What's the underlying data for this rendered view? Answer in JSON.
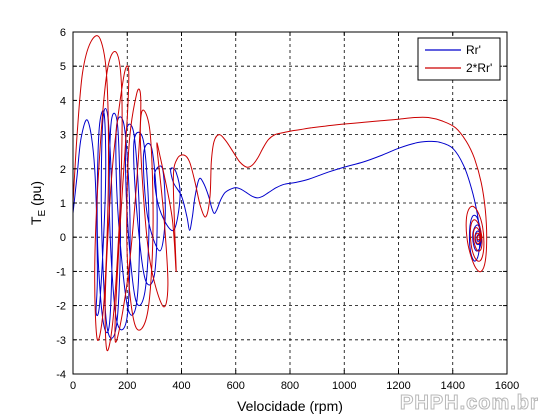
{
  "watermark": "PHPH.com.br",
  "chart_data": {
    "type": "line",
    "xlabel": "Velocidade (rpm)",
    "ylabel_main": "T",
    "ylabel_sub": "E",
    "ylabel_unit": "(pu)",
    "xlim": [
      0,
      1600
    ],
    "ylim": [
      -4,
      6
    ],
    "xticks": [
      0,
      200,
      400,
      600,
      800,
      1000,
      1200,
      1400,
      1600
    ],
    "yticks": [
      -4,
      -3,
      -2,
      -1,
      0,
      1,
      2,
      3,
      4,
      5,
      6
    ],
    "grid": true,
    "legend_position": "top-right",
    "series": [
      {
        "name": "Rr'",
        "color": "#0000cc",
        "x": [
          0,
          15,
          30,
          55,
          80,
          90,
          85,
          100,
          120,
          115,
          95,
          90,
          110,
          135,
          145,
          130,
          110,
          105,
          125,
          160,
          175,
          165,
          140,
          135,
          160,
          200,
          210,
          190,
          160,
          165,
          200,
          235,
          245,
          225,
          195,
          200,
          230,
          265,
          280,
          260,
          225,
          235,
          265,
          300,
          310,
          290,
          260,
          275,
          320,
          340,
          330,
          300,
          320,
          370,
          395,
          380,
          360,
          370,
          400,
          420,
          430,
          440,
          450,
          465,
          480,
          500,
          510,
          520,
          530,
          545,
          560,
          580,
          600,
          620,
          640,
          660,
          680,
          700,
          720,
          750,
          780,
          820,
          870,
          940,
          1000,
          1070,
          1140,
          1200,
          1260,
          1310,
          1350,
          1400,
          1440,
          1470,
          1490,
          1500,
          1495,
          1480,
          1465,
          1462,
          1472,
          1488,
          1500,
          1505,
          1500,
          1487,
          1476,
          1474,
          1482,
          1494,
          1502,
          1504,
          1498,
          1488,
          1482,
          1484,
          1492,
          1500,
          1502,
          1498,
          1492,
          1489,
          1491,
          1497,
          1500,
          1498,
          1495
        ],
        "y": [
          0.7,
          1.8,
          2.9,
          3.4,
          2.0,
          -1.0,
          -2.2,
          -1.8,
          1.5,
          3.6,
          3.0,
          0.0,
          -2.4,
          -2.5,
          0.5,
          3.4,
          3.4,
          0.5,
          -2.6,
          -2.6,
          0.0,
          3.2,
          3.3,
          0.5,
          -2.4,
          -2.3,
          0.5,
          3.2,
          3.2,
          0.8,
          -2.0,
          -1.9,
          0.5,
          3.0,
          3.0,
          0.6,
          -1.8,
          -1.6,
          0.5,
          2.8,
          2.8,
          0.8,
          -1.2,
          -1.1,
          0.8,
          2.6,
          2.4,
          0.6,
          -0.4,
          0.6,
          2.0,
          1.8,
          0.8,
          0.2,
          1.2,
          1.9,
          2.0,
          1.6,
          1.2,
          0.6,
          0.2,
          0.6,
          1.2,
          1.7,
          1.6,
          1.2,
          0.9,
          0.7,
          0.8,
          1.1,
          1.3,
          1.4,
          1.45,
          1.4,
          1.3,
          1.2,
          1.15,
          1.2,
          1.3,
          1.45,
          1.55,
          1.6,
          1.7,
          1.9,
          2.05,
          2.2,
          2.4,
          2.6,
          2.75,
          2.8,
          2.78,
          2.6,
          2.1,
          1.4,
          0.7,
          0.1,
          -0.5,
          -0.7,
          -0.4,
          0.2,
          0.6,
          0.6,
          0.3,
          0.0,
          -0.3,
          -0.4,
          -0.2,
          0.1,
          0.3,
          0.35,
          0.15,
          -0.05,
          -0.2,
          -0.2,
          -0.05,
          0.1,
          0.18,
          0.12,
          0.0,
          -0.1,
          -0.12,
          -0.05,
          0.05,
          0.08,
          0.04,
          0.0,
          0.0
        ]
      },
      {
        "name": "2*Rr'",
        "color": "#cc0000",
        "x": [
          0,
          15,
          35,
          65,
          100,
          125,
          130,
          115,
          90,
          80,
          95,
          125,
          160,
          180,
          175,
          150,
          125,
          120,
          145,
          185,
          205,
          200,
          175,
          155,
          165,
          205,
          240,
          250,
          235,
          205,
          200,
          230,
          275,
          295,
          285,
          255,
          250,
          280,
          330,
          350,
          335,
          310,
          320,
          365,
          380,
          375,
          370,
          385,
          410,
          430,
          450,
          470,
          490,
          505,
          510,
          520,
          540,
          565,
          590,
          615,
          640,
          660,
          680,
          700,
          720,
          745,
          770,
          800,
          840,
          880,
          930,
          990,
          1060,
          1130,
          1200,
          1260,
          1310,
          1360,
          1410,
          1450,
          1480,
          1505,
          1520,
          1525,
          1520,
          1505,
          1485,
          1465,
          1452,
          1450,
          1458,
          1475,
          1495,
          1510,
          1515,
          1508,
          1493,
          1476,
          1466,
          1466,
          1476,
          1490,
          1503,
          1508,
          1504,
          1493,
          1482,
          1476,
          1478,
          1487,
          1497,
          1503,
          1502,
          1495,
          1487,
          1483,
          1485,
          1492,
          1499,
          1501,
          1498,
          1493,
          1490,
          1492,
          1497,
          1500,
          1499,
          1496
        ],
        "y": [
          1.0,
          3.0,
          4.8,
          5.7,
          5.8,
          4.6,
          1.5,
          -1.8,
          -3.0,
          -1.0,
          2.0,
          4.8,
          5.4,
          4.2,
          1.2,
          -2.2,
          -3.3,
          -1.5,
          2.0,
          4.6,
          4.9,
          3.5,
          0.5,
          -2.6,
          -2.9,
          -1.0,
          2.2,
          4.0,
          4.2,
          2.5,
          -0.6,
          -2.6,
          -2.2,
          0.2,
          3.0,
          3.7,
          2.5,
          -0.5,
          -2.0,
          -1.4,
          0.6,
          2.6,
          2.4,
          0.6,
          -1.0,
          0.2,
          1.8,
          2.3,
          2.4,
          2.2,
          1.6,
          0.9,
          0.6,
          1.2,
          2.2,
          2.8,
          3.0,
          2.8,
          2.5,
          2.2,
          2.05,
          2.1,
          2.3,
          2.6,
          2.85,
          3.0,
          3.05,
          3.1,
          3.15,
          3.2,
          3.25,
          3.3,
          3.35,
          3.4,
          3.45,
          3.5,
          3.5,
          3.4,
          3.2,
          2.8,
          2.3,
          1.6,
          0.8,
          0.0,
          -0.7,
          -1.0,
          -0.9,
          -0.5,
          0.0,
          0.5,
          0.8,
          0.9,
          0.7,
          0.3,
          -0.2,
          -0.6,
          -0.7,
          -0.5,
          -0.1,
          0.3,
          0.5,
          0.45,
          0.2,
          -0.1,
          -0.35,
          -0.4,
          -0.25,
          0.0,
          0.2,
          0.28,
          0.2,
          0.05,
          -0.1,
          -0.18,
          -0.15,
          -0.03,
          0.08,
          0.12,
          0.08,
          0.0,
          -0.06,
          -0.07,
          -0.03,
          0.03,
          0.05,
          0.03,
          0.0,
          0.0
        ]
      }
    ]
  }
}
